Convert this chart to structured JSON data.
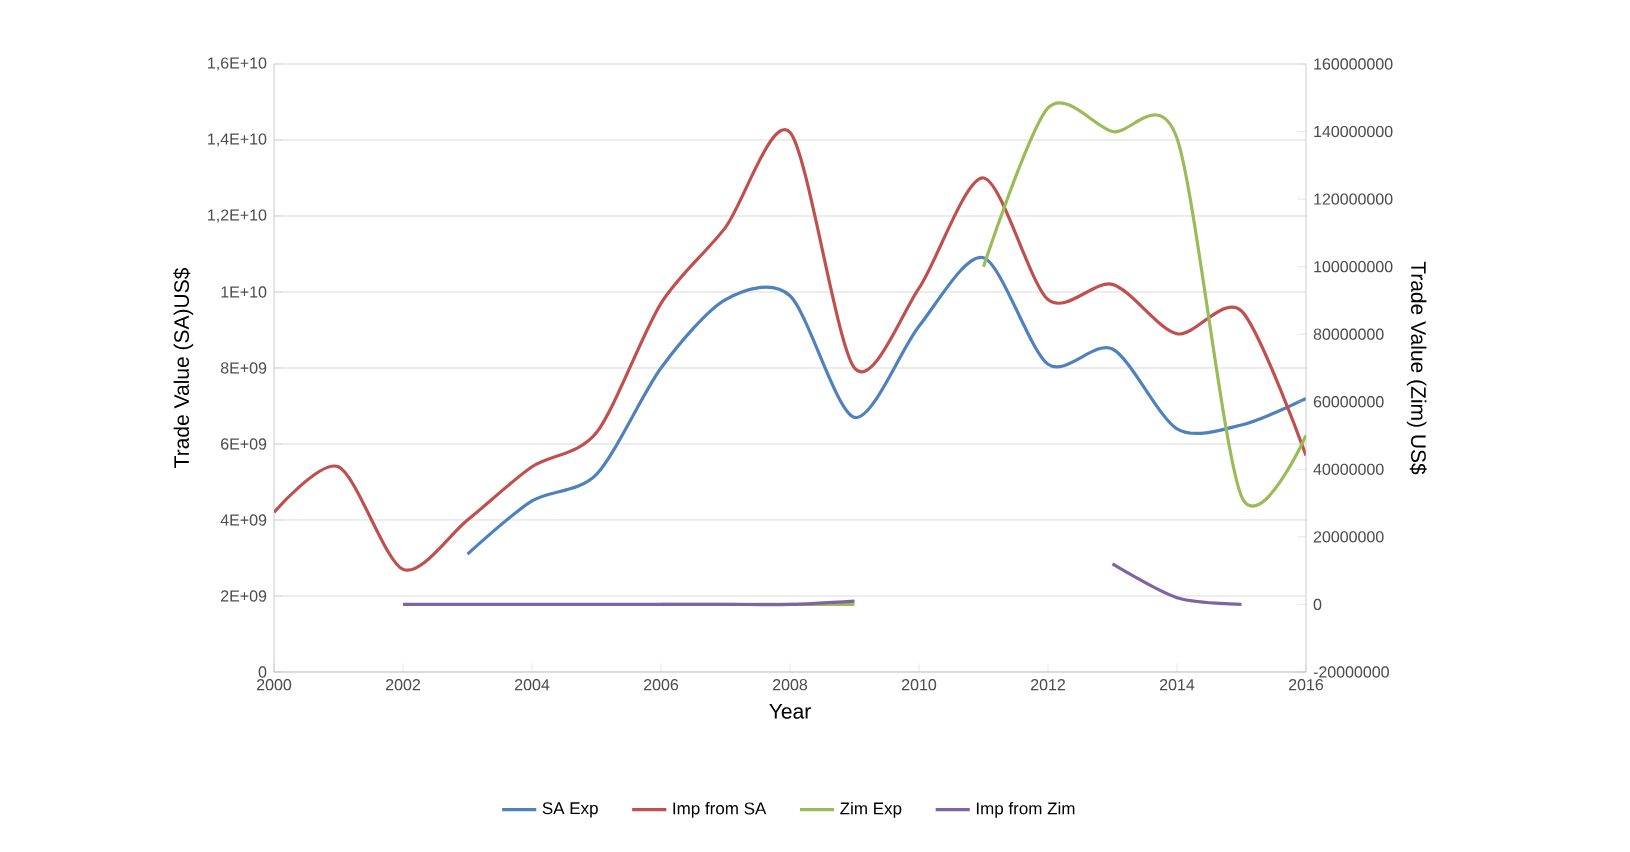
{
  "chart_data": {
    "type": "line",
    "xlabel": "Year",
    "ylabel": "Trade Value (SA)US$",
    "y2label": "Trade Value (Zim) US$",
    "x": [
      2000,
      2001,
      2002,
      2003,
      2004,
      2005,
      2006,
      2007,
      2008,
      2009,
      2010,
      2011,
      2012,
      2013,
      2014,
      2015,
      2016
    ],
    "series": [
      {
        "name": "SA Exp",
        "color": "#4f81bd",
        "values": [
          null,
          null,
          null,
          3100000000.0,
          4500000000.0,
          5200000000.0,
          8000000000.0,
          9800000000.0,
          9900000000.0,
          6700000000.0,
          9100000000.0,
          10900000000.0,
          8100000000.0,
          8500000000.0,
          6400000000.0,
          6500000000.0,
          7200000000.0
        ]
      },
      {
        "name": "Imp from SA",
        "color": "#c0504d",
        "values": [
          4200000000.0,
          5400000000.0,
          2700000000.0,
          4000000000.0,
          5400000000.0,
          6300000000.0,
          9700000000.0,
          11700000000.0,
          14200000000.0,
          8000000000.0,
          10100000000.0,
          13000000000.0,
          9800000000.0,
          10200000000.0,
          8900000000.0,
          9500000000.0,
          5700000000.0
        ]
      },
      {
        "name": "Zim Exp",
        "color": "#9bbb59",
        "axis": "y2",
        "values": [
          null,
          null,
          null,
          null,
          null,
          null,
          0,
          0,
          0,
          0,
          null,
          100000000,
          147000000,
          140000000,
          138000000,
          32000000,
          50000000
        ]
      },
      {
        "name": "Imp from Zim",
        "color": "#8064a2",
        "axis": "y2",
        "values": [
          null,
          null,
          0,
          0,
          0,
          0,
          0,
          0,
          0,
          1000000,
          null,
          null,
          null,
          12000000,
          2000000,
          0,
          null
        ]
      }
    ],
    "xlim": [
      2000,
      2016
    ],
    "xticks": [
      2000,
      2002,
      2004,
      2006,
      2008,
      2010,
      2012,
      2014,
      2016
    ],
    "ylim": [
      0,
      16000000000.0
    ],
    "yticks": [
      {
        "value": 0,
        "label": "0"
      },
      {
        "value": 2000000000.0,
        "label": "2E+09"
      },
      {
        "value": 4000000000.0,
        "label": "4E+09"
      },
      {
        "value": 6000000000.0,
        "label": "6E+09"
      },
      {
        "value": 8000000000.0,
        "label": "8E+09"
      },
      {
        "value": 10000000000.0,
        "label": "1E+10"
      },
      {
        "value": 12000000000.0,
        "label": "1,2E+10"
      },
      {
        "value": 14000000000.0,
        "label": "1,4E+10"
      },
      {
        "value": 16000000000.0,
        "label": "1,6E+10"
      }
    ],
    "y2lim": [
      -20000000,
      160000000
    ],
    "y2ticks": [
      -20000000,
      0,
      20000000,
      40000000,
      60000000,
      80000000,
      100000000,
      120000000,
      140000000,
      160000000
    ],
    "grid": "y",
    "legend": "bottom",
    "line_style": "solid"
  }
}
